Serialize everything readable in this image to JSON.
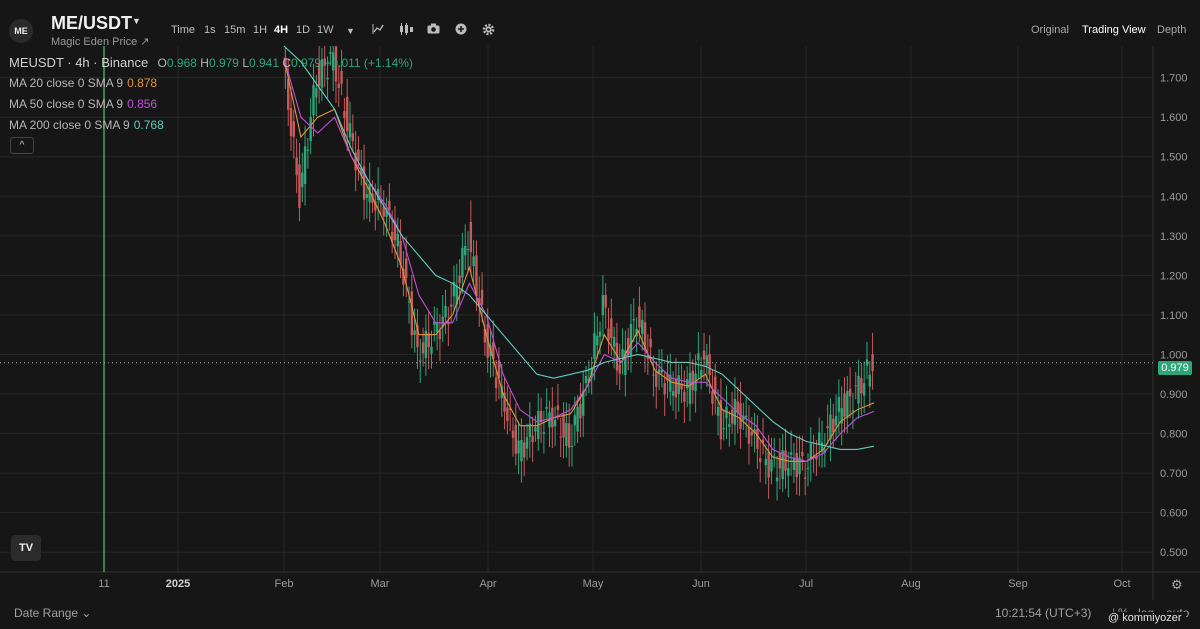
{
  "header": {
    "logo_text": "ME",
    "pair": "ME/USDT",
    "subtitle": "Magic Eden Price ↗",
    "timeframes": [
      "Time",
      "1s",
      "15m",
      "1H",
      "4H",
      "1D",
      "1W"
    ],
    "active_timeframe": "4H",
    "views": [
      "Original",
      "Trading View",
      "Depth"
    ],
    "active_view": "Trading View"
  },
  "legend": {
    "symbol": "MEUSDT · 4h · Binance",
    "open_label": "O",
    "open": "0.968",
    "high_label": "H",
    "high": "0.979",
    "low_label": "L",
    "low": "0.941",
    "close_label": "C",
    "close": "0.979",
    "change": "+0.011 (+1.14%)",
    "ma20_label": "MA 20 close 0 SMA 9",
    "ma20_value": "0.878",
    "ma50_label": "MA 50 close 0 SMA 9",
    "ma50_value": "0.856",
    "ma200_label": "MA 200 close 0 SMA 9",
    "ma200_value": "0.768",
    "collapse_glyph": "^"
  },
  "colors": {
    "up": "#2ea67a",
    "down": "#c85a5a",
    "ma20": "#e0953c",
    "ma50": "#c04fd6",
    "ma200": "#5fcdbf",
    "background": "#161616"
  },
  "chart_data": {
    "type": "line",
    "title": "",
    "ylim": [
      0.45,
      1.78
    ],
    "y_ticks": [
      "1.700",
      "1.600",
      "1.500",
      "1.400",
      "1.300",
      "1.200",
      "1.100",
      "1.000",
      "0.900",
      "0.800",
      "0.700",
      "0.600",
      "0.500"
    ],
    "x_ticks": [
      "11",
      "2025",
      "Feb",
      "Mar",
      "Apr",
      "May",
      "Jun",
      "Jul",
      "Aug",
      "Sep",
      "Oct"
    ],
    "last_price": "0.979",
    "price_x": [
      "Jan 29",
      "Feb 3",
      "Feb 8",
      "Feb 13",
      "Feb 18",
      "Feb 23",
      "Feb 28",
      "Mar 5",
      "Mar 10",
      "Mar 15",
      "Mar 20",
      "Mar 25",
      "Mar 30",
      "Apr 4",
      "Apr 9",
      "Apr 14",
      "Apr 19",
      "Apr 24",
      "Apr 29",
      "May 4",
      "May 9",
      "May 14",
      "May 19",
      "May 24",
      "May 29",
      "Jun 3",
      "Jun 8",
      "Jun 13",
      "Jun 18",
      "Jun 23",
      "Jun 28",
      "Jul 3",
      "Jul 8",
      "Jul 13",
      "Jul 18",
      "Jul 21"
    ],
    "series": [
      {
        "name": "MEUSDT",
        "values": [
          1.75,
          1.4,
          1.7,
          1.75,
          1.55,
          1.4,
          1.38,
          1.25,
          1.0,
          1.05,
          1.12,
          1.3,
          1.05,
          0.9,
          0.75,
          0.82,
          0.85,
          0.78,
          0.92,
          1.12,
          0.96,
          1.1,
          0.96,
          0.92,
          0.91,
          1.0,
          0.82,
          0.86,
          0.78,
          0.71,
          0.73,
          0.72,
          0.78,
          0.86,
          0.9,
          0.979
        ]
      },
      {
        "name": "MA 20",
        "values": [
          1.75,
          1.55,
          1.6,
          1.62,
          1.5,
          1.42,
          1.33,
          1.22,
          1.05,
          1.05,
          1.1,
          1.22,
          1.05,
          0.9,
          0.82,
          0.82,
          0.84,
          0.85,
          0.92,
          1.05,
          0.98,
          1.06,
          0.96,
          0.93,
          0.92,
          0.95,
          0.86,
          0.84,
          0.8,
          0.74,
          0.73,
          0.73,
          0.76,
          0.83,
          0.86,
          0.878
        ]
      },
      {
        "name": "MA 50",
        "values": [
          1.75,
          1.6,
          1.56,
          1.6,
          1.5,
          1.44,
          1.38,
          1.3,
          1.15,
          1.08,
          1.08,
          1.18,
          1.1,
          0.95,
          0.86,
          0.83,
          0.84,
          0.86,
          0.92,
          1.0,
          0.98,
          1.03,
          0.98,
          0.94,
          0.93,
          0.93,
          0.89,
          0.85,
          0.82,
          0.76,
          0.74,
          0.73,
          0.75,
          0.8,
          0.84,
          0.856
        ]
      },
      {
        "name": "MA 200",
        "values": [
          1.78,
          1.74,
          1.68,
          1.62,
          1.52,
          1.44,
          1.37,
          1.3,
          1.25,
          1.2,
          1.18,
          1.15,
          1.1,
          1.05,
          1.0,
          0.95,
          0.94,
          0.95,
          0.96,
          0.98,
          0.99,
          1.0,
          0.99,
          0.98,
          0.98,
          0.97,
          0.95,
          0.91,
          0.87,
          0.83,
          0.8,
          0.78,
          0.77,
          0.76,
          0.76,
          0.768
        ]
      }
    ],
    "grid": true
  },
  "footer": {
    "date_range": "Date Range ⌄",
    "time": "10:21:54 (UTC+3)",
    "percent": "%",
    "log": "log",
    "auto": "auto",
    "watermark": "@ kommiyozer"
  }
}
